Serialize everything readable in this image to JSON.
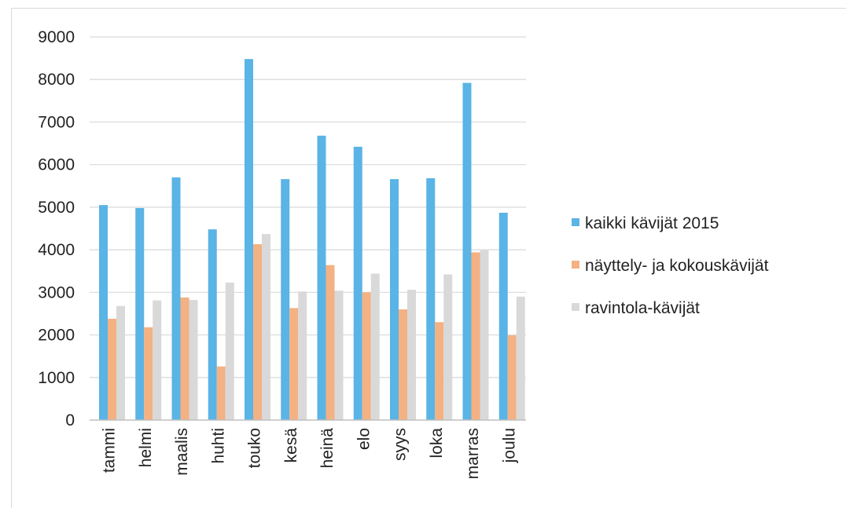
{
  "chart_data": {
    "type": "bar",
    "categories": [
      "tammi",
      "helmi",
      "maalis",
      "huhti",
      "touko",
      "kesä",
      "heinä",
      "elo",
      "syys",
      "loka",
      "marras",
      "joulu"
    ],
    "series": [
      {
        "name": "kaikki kävijät 2015",
        "color": "#5ab4e5",
        "values": [
          5050,
          4980,
          5700,
          4480,
          8480,
          5660,
          6680,
          6420,
          5660,
          5680,
          7920,
          4870
        ]
      },
      {
        "name": "näyttely- ja kokouskävijät",
        "color": "#f4b183",
        "values": [
          2380,
          2180,
          2880,
          1260,
          4130,
          2630,
          3640,
          3000,
          2600,
          2300,
          3940,
          1990
        ]
      },
      {
        "name": "ravintola-kävijät",
        "color": "#d9d9d9",
        "values": [
          2680,
          2810,
          2820,
          3230,
          4370,
          3020,
          3040,
          3440,
          3060,
          3420,
          3990,
          2900
        ]
      }
    ],
    "ylim": [
      0,
      9000
    ],
    "yticks": [
      0,
      1000,
      2000,
      3000,
      4000,
      5000,
      6000,
      7000,
      8000,
      9000
    ],
    "grid": true,
    "legend_position": "right"
  }
}
